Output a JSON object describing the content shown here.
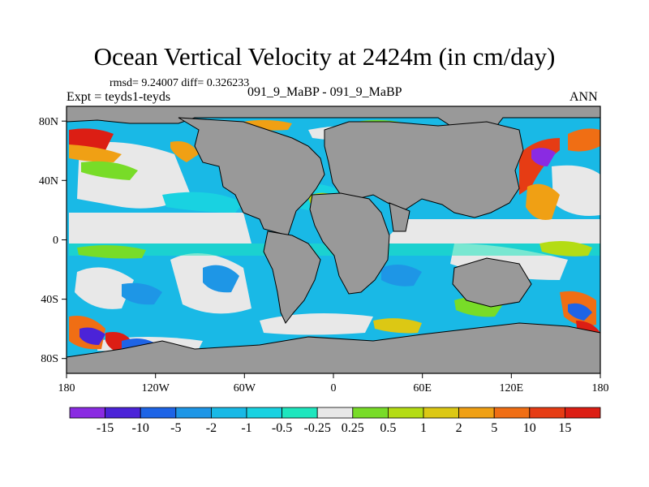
{
  "title": "Ocean Vertical Velocity at 2424m (in cm/day)",
  "stats": "rmsd= 9.24007 diff= 0.326233",
  "expt": "Expt = teyds1-teyds",
  "case": "091_9_MaBP - 091_9_MaBP",
  "season": "ANN",
  "map": {
    "lon_range": [
      -180,
      180
    ],
    "lat_range": [
      -90,
      90
    ],
    "x_ticks": [
      "180",
      "120W",
      "60W",
      "0",
      "60E",
      "120E",
      "180"
    ],
    "y_ticks": [
      "80N",
      "40N",
      "0",
      "40S",
      "80S"
    ],
    "land_color": "#999999",
    "coast_color": "#000000"
  },
  "colorbar": {
    "labels": [
      "-15",
      "-10",
      "-5",
      "-2",
      "-1",
      "-0.5",
      "-0.25",
      "0.25",
      "0.5",
      "1",
      "2",
      "5",
      "10",
      "15"
    ],
    "colors": [
      "#8a2be2",
      "#4b23d8",
      "#1e64e6",
      "#1e96e6",
      "#19b9e6",
      "#19d2e1",
      "#1ee6be",
      "#e8e8e8",
      "#78dc28",
      "#b4dc14",
      "#dcc814",
      "#f0a014",
      "#f06e14",
      "#e63c14",
      "#dc1e14"
    ]
  }
}
